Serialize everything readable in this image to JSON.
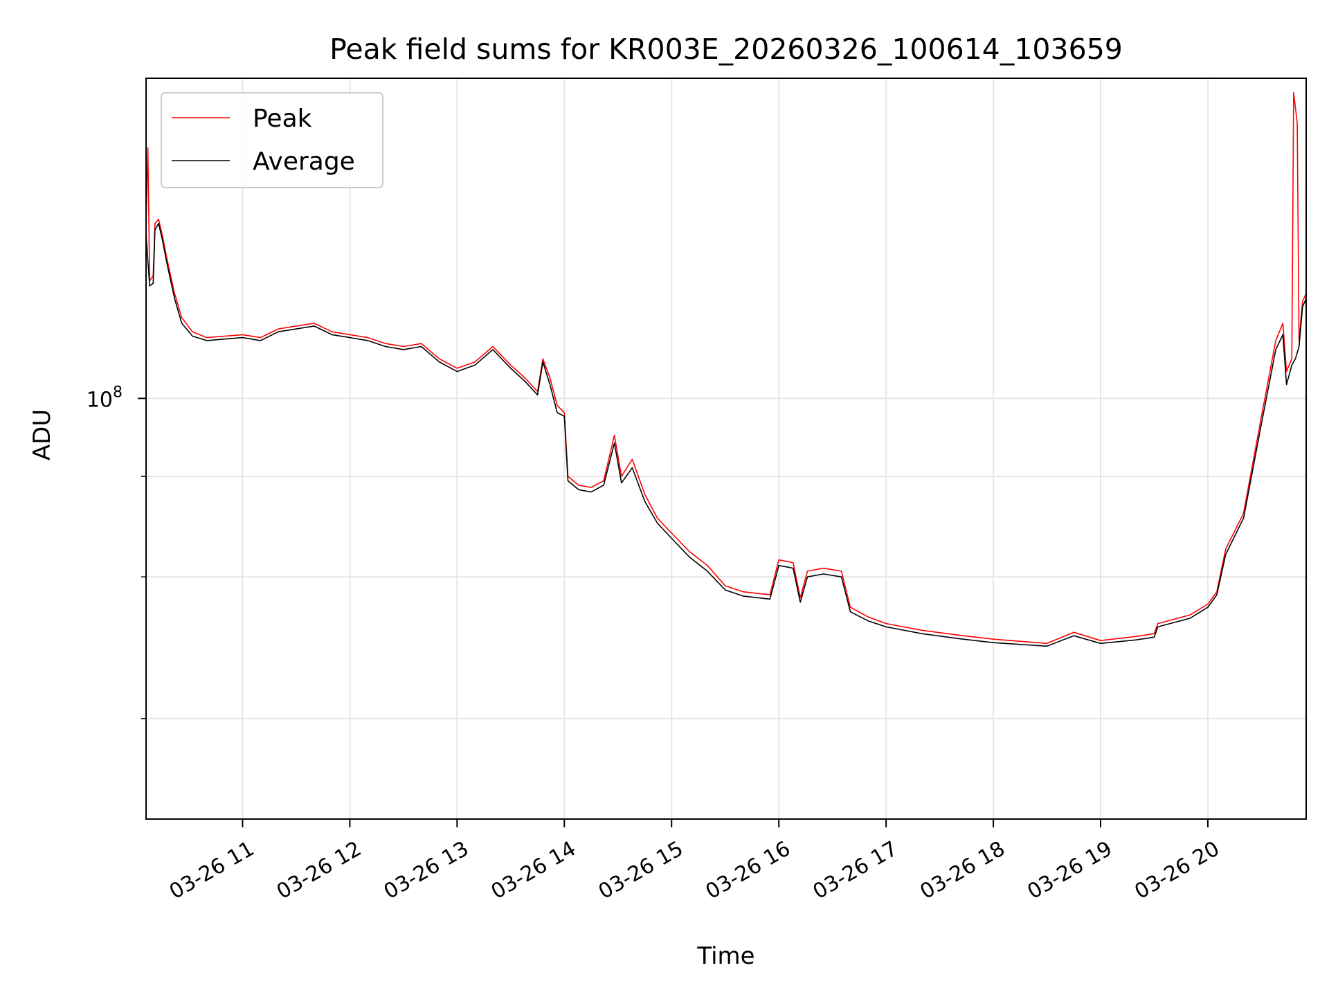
{
  "chart_data": {
    "type": "line",
    "title": "Peak field sums for KR003E_20260326_100614_103659",
    "xlabel": "Time",
    "ylabel": "ADU",
    "y_scale": "log",
    "ylim": [
      30000000,
      250000000
    ],
    "xlim": [
      "2026-03-26 10:06",
      "2026-03-26 20:55"
    ],
    "y_tick_labels": [
      {
        "value": 100000000,
        "base": "10",
        "exp": "8"
      }
    ],
    "y_minor_ticks": [
      40000000,
      60000000,
      80000000
    ],
    "x_tick_labels": [
      {
        "t": "2026-03-26 11:00",
        "label": "03-26 11"
      },
      {
        "t": "2026-03-26 12:00",
        "label": "03-26 12"
      },
      {
        "t": "2026-03-26 13:00",
        "label": "03-26 13"
      },
      {
        "t": "2026-03-26 14:00",
        "label": "03-26 14"
      },
      {
        "t": "2026-03-26 15:00",
        "label": "03-26 15"
      },
      {
        "t": "2026-03-26 16:00",
        "label": "03-26 16"
      },
      {
        "t": "2026-03-26 17:00",
        "label": "03-26 17"
      },
      {
        "t": "2026-03-26 18:00",
        "label": "03-26 18"
      },
      {
        "t": "2026-03-26 19:00",
        "label": "03-26 19"
      },
      {
        "t": "2026-03-26 20:00",
        "label": "03-26 20"
      }
    ],
    "grid": true,
    "legend_position": "upper-left",
    "series": [
      {
        "name": "Peak",
        "color": "#ff0000",
        "points": [
          [
            "2026-03-26 10:06",
            165000000
          ],
          [
            "2026-03-26 10:07",
            205000000
          ],
          [
            "2026-03-26 10:08",
            140000000
          ],
          [
            "2026-03-26 10:10",
            142000000
          ],
          [
            "2026-03-26 10:11",
            165000000
          ],
          [
            "2026-03-26 10:13",
            167000000
          ],
          [
            "2026-03-26 10:15",
            160000000
          ],
          [
            "2026-03-26 10:18",
            148000000
          ],
          [
            "2026-03-26 10:22",
            135000000
          ],
          [
            "2026-03-26 10:26",
            126000000
          ],
          [
            "2026-03-26 10:32",
            121000000
          ],
          [
            "2026-03-26 10:40",
            119000000
          ],
          [
            "2026-03-26 10:50",
            119500000
          ],
          [
            "2026-03-26 11:00",
            120000000
          ],
          [
            "2026-03-26 11:10",
            119000000
          ],
          [
            "2026-03-26 11:20",
            122000000
          ],
          [
            "2026-03-26 11:30",
            123000000
          ],
          [
            "2026-03-26 11:40",
            124000000
          ],
          [
            "2026-03-26 11:50",
            121000000
          ],
          [
            "2026-03-26 12:00",
            120000000
          ],
          [
            "2026-03-26 12:10",
            119000000
          ],
          [
            "2026-03-26 12:20",
            117000000
          ],
          [
            "2026-03-26 12:30",
            116000000
          ],
          [
            "2026-03-26 12:40",
            117000000
          ],
          [
            "2026-03-26 12:50",
            112000000
          ],
          [
            "2026-03-26 13:00",
            109000000
          ],
          [
            "2026-03-26 13:10",
            111000000
          ],
          [
            "2026-03-26 13:20",
            116000000
          ],
          [
            "2026-03-26 13:30",
            110000000
          ],
          [
            "2026-03-26 13:38",
            106000000
          ],
          [
            "2026-03-26 13:45",
            102000000
          ],
          [
            "2026-03-26 13:48",
            112000000
          ],
          [
            "2026-03-26 13:52",
            106000000
          ],
          [
            "2026-03-26 13:56",
            98000000
          ],
          [
            "2026-03-26 14:00",
            96000000
          ],
          [
            "2026-03-26 14:02",
            80000000
          ],
          [
            "2026-03-26 14:08",
            78000000
          ],
          [
            "2026-03-26 14:15",
            77500000
          ],
          [
            "2026-03-26 14:22",
            79000000
          ],
          [
            "2026-03-26 14:28",
            90000000
          ],
          [
            "2026-03-26 14:32",
            80000000
          ],
          [
            "2026-03-26 14:38",
            84000000
          ],
          [
            "2026-03-26 14:45",
            76000000
          ],
          [
            "2026-03-26 14:52",
            71000000
          ],
          [
            "2026-03-26 15:00",
            68000000
          ],
          [
            "2026-03-26 15:10",
            64500000
          ],
          [
            "2026-03-26 15:20",
            62000000
          ],
          [
            "2026-03-26 15:30",
            58500000
          ],
          [
            "2026-03-26 15:40",
            57500000
          ],
          [
            "2026-03-26 15:55",
            57000000
          ],
          [
            "2026-03-26 16:00",
            63000000
          ],
          [
            "2026-03-26 16:08",
            62500000
          ],
          [
            "2026-03-26 16:12",
            56500000
          ],
          [
            "2026-03-26 16:16",
            61000000
          ],
          [
            "2026-03-26 16:25",
            61500000
          ],
          [
            "2026-03-26 16:35",
            61000000
          ],
          [
            "2026-03-26 16:40",
            55000000
          ],
          [
            "2026-03-26 16:50",
            53500000
          ],
          [
            "2026-03-26 17:00",
            52500000
          ],
          [
            "2026-03-26 17:20",
            51500000
          ],
          [
            "2026-03-26 17:40",
            50800000
          ],
          [
            "2026-03-26 18:00",
            50200000
          ],
          [
            "2026-03-26 18:30",
            49600000
          ],
          [
            "2026-03-26 18:45",
            51200000
          ],
          [
            "2026-03-26 19:00",
            50000000
          ],
          [
            "2026-03-26 19:20",
            50600000
          ],
          [
            "2026-03-26 19:30",
            51000000
          ],
          [
            "2026-03-26 19:32",
            52500000
          ],
          [
            "2026-03-26 19:50",
            53800000
          ],
          [
            "2026-03-26 20:00",
            55500000
          ],
          [
            "2026-03-26 20:05",
            57500000
          ],
          [
            "2026-03-26 20:10",
            65000000
          ],
          [
            "2026-03-26 20:20",
            72000000
          ],
          [
            "2026-03-26 20:30",
            95000000
          ],
          [
            "2026-03-26 20:38",
            118000000
          ],
          [
            "2026-03-26 20:42",
            124000000
          ],
          [
            "2026-03-26 20:44",
            108000000
          ],
          [
            "2026-03-26 20:47",
            112000000
          ],
          [
            "2026-03-26 20:48",
            240000000
          ],
          [
            "2026-03-26 20:50",
            220000000
          ],
          [
            "2026-03-26 20:51",
            118000000
          ],
          [
            "2026-03-26 20:53",
            132000000
          ],
          [
            "2026-03-26 20:55",
            135000000
          ]
        ]
      },
      {
        "name": "Average",
        "color": "#000000",
        "points": [
          [
            "2026-03-26 10:06",
            160000000
          ],
          [
            "2026-03-26 10:08",
            138000000
          ],
          [
            "2026-03-26 10:10",
            139000000
          ],
          [
            "2026-03-26 10:11",
            162000000
          ],
          [
            "2026-03-26 10:13",
            165000000
          ],
          [
            "2026-03-26 10:15",
            158000000
          ],
          [
            "2026-03-26 10:18",
            146000000
          ],
          [
            "2026-03-26 10:22",
            133000000
          ],
          [
            "2026-03-26 10:26",
            124000000
          ],
          [
            "2026-03-26 10:32",
            119500000
          ],
          [
            "2026-03-26 10:40",
            118000000
          ],
          [
            "2026-03-26 10:50",
            118500000
          ],
          [
            "2026-03-26 11:00",
            119000000
          ],
          [
            "2026-03-26 11:10",
            118000000
          ],
          [
            "2026-03-26 11:20",
            121000000
          ],
          [
            "2026-03-26 11:30",
            122000000
          ],
          [
            "2026-03-26 11:40",
            123000000
          ],
          [
            "2026-03-26 11:50",
            120000000
          ],
          [
            "2026-03-26 12:00",
            119000000
          ],
          [
            "2026-03-26 12:10",
            118000000
          ],
          [
            "2026-03-26 12:20",
            116000000
          ],
          [
            "2026-03-26 12:30",
            115000000
          ],
          [
            "2026-03-26 12:40",
            116000000
          ],
          [
            "2026-03-26 12:50",
            111000000
          ],
          [
            "2026-03-26 13:00",
            108000000
          ],
          [
            "2026-03-26 13:10",
            110000000
          ],
          [
            "2026-03-26 13:20",
            115000000
          ],
          [
            "2026-03-26 13:30",
            109000000
          ],
          [
            "2026-03-26 13:38",
            105000000
          ],
          [
            "2026-03-26 13:45",
            101000000
          ],
          [
            "2026-03-26 13:48",
            111000000
          ],
          [
            "2026-03-26 13:52",
            104000000
          ],
          [
            "2026-03-26 13:56",
            96000000
          ],
          [
            "2026-03-26 14:00",
            95000000
          ],
          [
            "2026-03-26 14:02",
            79000000
          ],
          [
            "2026-03-26 14:08",
            77000000
          ],
          [
            "2026-03-26 14:15",
            76500000
          ],
          [
            "2026-03-26 14:22",
            78000000
          ],
          [
            "2026-03-26 14:28",
            88000000
          ],
          [
            "2026-03-26 14:32",
            78500000
          ],
          [
            "2026-03-26 14:38",
            82000000
          ],
          [
            "2026-03-26 14:45",
            74500000
          ],
          [
            "2026-03-26 14:52",
            70000000
          ],
          [
            "2026-03-26 15:00",
            67000000
          ],
          [
            "2026-03-26 15:10",
            63500000
          ],
          [
            "2026-03-26 15:20",
            61000000
          ],
          [
            "2026-03-26 15:30",
            57800000
          ],
          [
            "2026-03-26 15:40",
            56800000
          ],
          [
            "2026-03-26 15:55",
            56300000
          ],
          [
            "2026-03-26 16:00",
            62000000
          ],
          [
            "2026-03-26 16:08",
            61500000
          ],
          [
            "2026-03-26 16:12",
            55800000
          ],
          [
            "2026-03-26 16:16",
            60000000
          ],
          [
            "2026-03-26 16:25",
            60500000
          ],
          [
            "2026-03-26 16:35",
            60000000
          ],
          [
            "2026-03-26 16:40",
            54300000
          ],
          [
            "2026-03-26 16:50",
            52900000
          ],
          [
            "2026-03-26 17:00",
            52000000
          ],
          [
            "2026-03-26 17:20",
            51000000
          ],
          [
            "2026-03-26 17:40",
            50300000
          ],
          [
            "2026-03-26 18:00",
            49700000
          ],
          [
            "2026-03-26 18:30",
            49200000
          ],
          [
            "2026-03-26 18:45",
            50700000
          ],
          [
            "2026-03-26 19:00",
            49600000
          ],
          [
            "2026-03-26 19:20",
            50100000
          ],
          [
            "2026-03-26 19:30",
            50500000
          ],
          [
            "2026-03-26 19:32",
            52000000
          ],
          [
            "2026-03-26 19:50",
            53300000
          ],
          [
            "2026-03-26 20:00",
            55000000
          ],
          [
            "2026-03-26 20:05",
            57000000
          ],
          [
            "2026-03-26 20:10",
            64000000
          ],
          [
            "2026-03-26 20:20",
            71000000
          ],
          [
            "2026-03-26 20:30",
            93000000
          ],
          [
            "2026-03-26 20:38",
            115000000
          ],
          [
            "2026-03-26 20:42",
            120000000
          ],
          [
            "2026-03-26 20:44",
            104000000
          ],
          [
            "2026-03-26 20:47",
            110000000
          ],
          [
            "2026-03-26 20:49",
            112000000
          ],
          [
            "2026-03-26 20:51",
            116000000
          ],
          [
            "2026-03-26 20:53",
            130000000
          ],
          [
            "2026-03-26 20:55",
            133000000
          ]
        ]
      }
    ]
  }
}
